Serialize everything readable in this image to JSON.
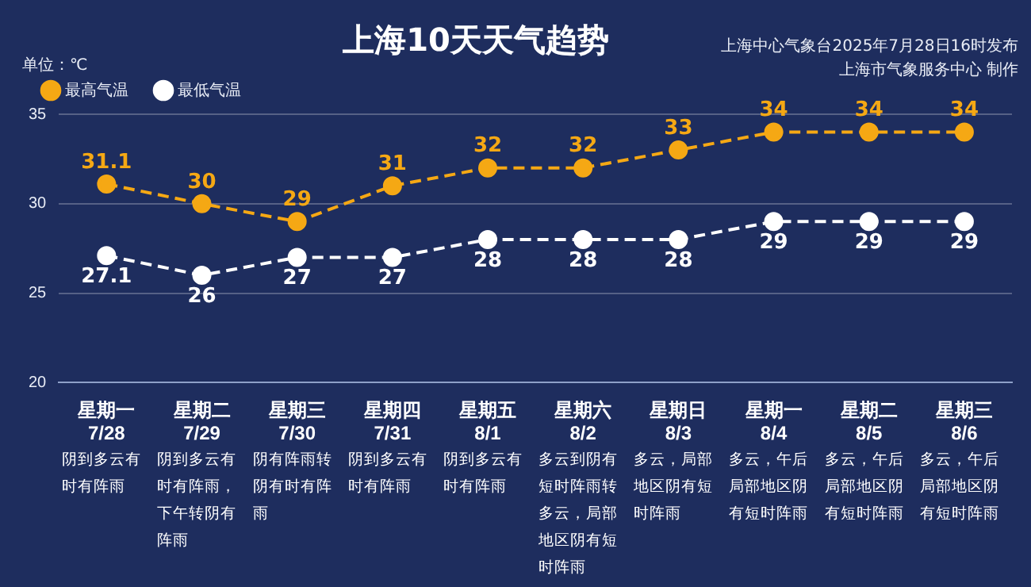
{
  "chart_data": {
    "type": "line",
    "title": "上海10天天气趋势",
    "ylabel": "单位：℃",
    "categories": [
      "星期一\n7/28",
      "星期二\n7/29",
      "星期三\n7/30",
      "星期四\n7/31",
      "星期五\n8/1",
      "星期六\n8/2",
      "星期日\n8/3",
      "星期一\n8/4",
      "星期二\n8/5",
      "星期三\n8/6"
    ],
    "series": [
      {
        "name": "最高气温",
        "color": "#f5a814",
        "values": [
          31.1,
          30,
          29,
          31,
          32,
          32,
          33,
          34,
          34,
          34
        ]
      },
      {
        "name": "最低气温",
        "color": "#ffffff",
        "values": [
          27.1,
          26,
          27,
          27,
          28,
          28,
          28,
          29,
          29,
          29
        ]
      }
    ],
    "ylim": [
      20,
      35
    ],
    "yticks": [
      20,
      25,
      30,
      35
    ],
    "grid": "y",
    "legend": "top left",
    "marker": "circle",
    "line_style": "dashed",
    "data_labels": true,
    "annotations": [
      "上海中心气象台2025年7月28日16时发布",
      "上海市气象服务中心 制作",
      "阴到多云有时有阵雨",
      "阴到多云有时有阵雨，下午转阴有阵雨",
      "阴有阵雨转阴有时有阵雨",
      "阴到多云有时有阵雨",
      "阴到多云有时有阵雨",
      "多云到阴有短时阵雨转多云，局部地区阴有短时阵雨",
      "多云，局部地区阴有短时阵雨",
      "多云，午后局部地区阴有短时阵雨",
      "多云，午后局部地区阴有短时阵雨",
      "多云，午后局部地区阴有短时阵雨"
    ]
  }
}
